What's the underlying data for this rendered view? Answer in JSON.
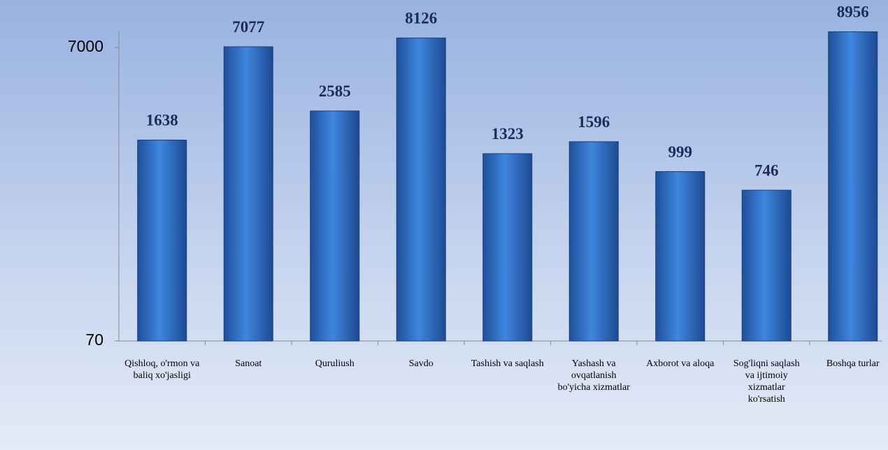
{
  "chart_data": {
    "type": "bar",
    "categories": [
      "Qishloq, o'rmon va baliq xo'jasligi",
      "Sanoat",
      "Quruliush",
      "Savdo",
      "Tashish va saqlash",
      "Yashash va ovqatlanish bo'yicha xizmatlar",
      "Axborot va aloqa",
      "Sog'liqni saqlash va ijtimoiy xizmatlar ko'rsatish",
      "Boshqa turlar"
    ],
    "values": [
      1638,
      7077,
      2585,
      8126,
      1323,
      1596,
      999,
      746,
      8956
    ],
    "color": "#3a7bd5",
    "yscale": "log",
    "ylim": [
      70,
      9000
    ],
    "yticks": [
      70,
      7000
    ],
    "grid": false
  }
}
